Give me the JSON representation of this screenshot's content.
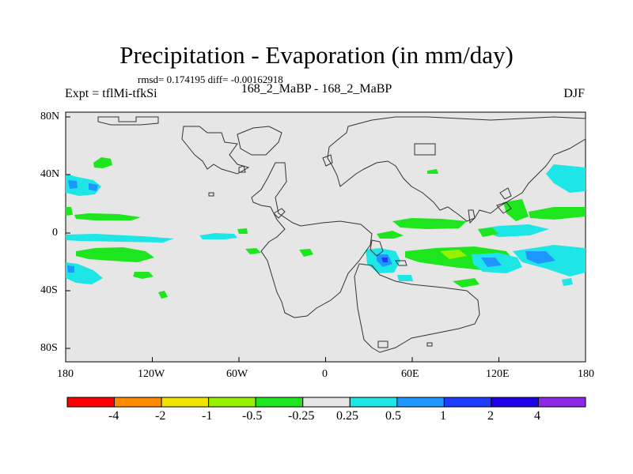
{
  "title": "Precipitation - Evaporation (in mm/day)",
  "subtitle": "rmsd= 0.174195 diff= -0.00162918",
  "left_label": "Expt = tflMi-tfkSi",
  "center_label": "168_2_MaBP - 168_2_MaBP",
  "right_label": "DJF",
  "map": {
    "background_color": "#e6e6e6",
    "x_ticks": [
      "180",
      "120W",
      "60W",
      "0",
      "60E",
      "120E",
      "180"
    ],
    "y_ticks": [
      "80N",
      "40N",
      "0",
      "40S",
      "80S"
    ]
  },
  "legend": {
    "colors": [
      "#ff0000",
      "#ff8c00",
      "#f0e400",
      "#96f000",
      "#1ee61e",
      "#e6e6e6",
      "#1ee6e6",
      "#1e96ff",
      "#1e3cff",
      "#1e00e6",
      "#8c28e6"
    ],
    "labels": [
      "-4",
      "-2",
      "-1",
      "-0.5",
      "-0.25",
      "0.25",
      "0.5",
      "1",
      "2",
      "4"
    ]
  }
}
